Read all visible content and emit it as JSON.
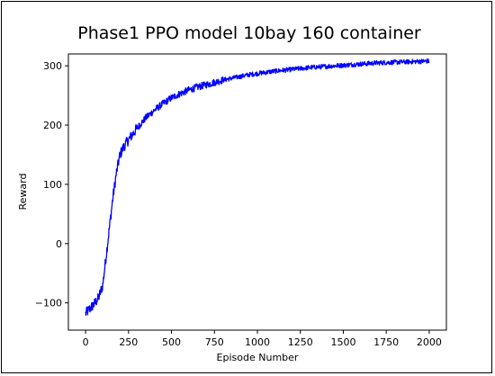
{
  "chart_data": {
    "type": "line",
    "title": "Phase1 PPO model 10bay 160 container",
    "xlabel": "Episode Number",
    "ylabel": "Reward",
    "xlim": [
      -100,
      2100
    ],
    "ylim": [
      -146,
      320
    ],
    "xticks": [
      0,
      250,
      500,
      750,
      1000,
      1250,
      1500,
      1750,
      2000
    ],
    "yticks": [
      -100,
      0,
      100,
      200,
      300
    ],
    "grid": false,
    "series": [
      {
        "color": "#0000ff",
        "x": [
          0,
          25,
          50,
          75,
          100,
          120,
          140,
          160,
          180,
          200,
          225,
          250,
          300,
          350,
          400,
          450,
          500,
          550,
          600,
          650,
          700,
          750,
          800,
          850,
          900,
          950,
          1000,
          1100,
          1200,
          1300,
          1400,
          1500,
          1600,
          1700,
          1800,
          1900,
          2000
        ],
        "y": [
          -118,
          -110,
          -102,
          -92,
          -70,
          -20,
          30,
          80,
          120,
          150,
          165,
          175,
          195,
          212,
          225,
          236,
          246,
          253,
          259,
          264,
          268,
          272,
          276,
          279,
          282,
          285,
          287,
          291,
          294,
          297,
          299,
          301,
          303,
          305,
          306,
          307,
          308
        ]
      }
    ]
  }
}
